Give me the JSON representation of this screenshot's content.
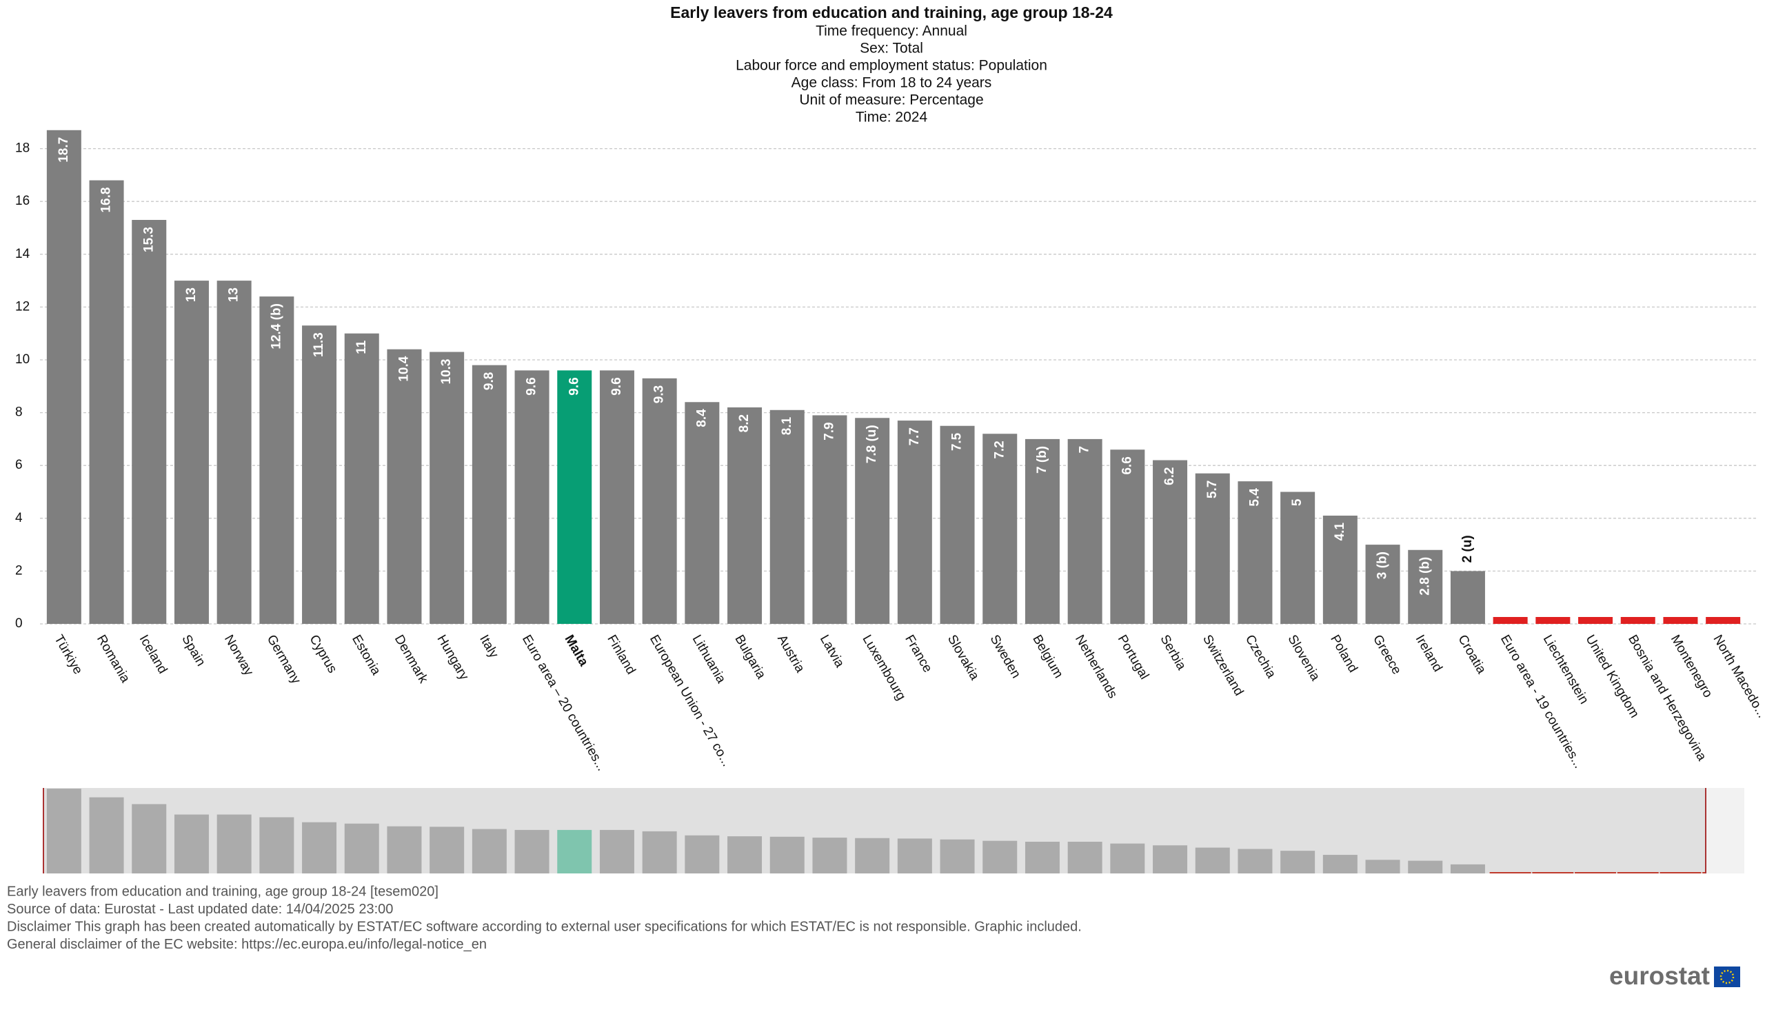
{
  "chart_data": {
    "type": "bar",
    "title": "Early leavers from education and training, age group 18-24",
    "subtitle": [
      "Time frequency:  Annual",
      "Sex:  Total",
      "Labour force and employment status:  Population",
      "Age class:  From 18 to 24 years",
      "Unit of measure:  Percentage",
      "Time:  2024"
    ],
    "categories": [
      "Türkiye",
      "Romania",
      "Iceland",
      "Spain",
      "Norway",
      "Germany",
      "Cyprus",
      "Estonia",
      "Denmark",
      "Hungary",
      "Italy",
      "Euro area – 20 countries...",
      "Malta",
      "Finland",
      "European Union - 27 co...",
      "Lithuania",
      "Bulgaria",
      "Austria",
      "Latvia",
      "Luxembourg",
      "France",
      "Slovakia",
      "Sweden",
      "Belgium",
      "Netherlands",
      "Portugal",
      "Serbia",
      "Switzerland",
      "Czechia",
      "Slovenia",
      "Poland",
      "Greece",
      "Ireland",
      "Croatia",
      "Euro area - 19 countries...",
      "Liechtenstein",
      "United Kingdom",
      "Bosnia and Herzegovina",
      "Montenegro",
      "North Macedo..."
    ],
    "values": [
      18.7,
      16.8,
      15.3,
      13,
      13,
      12.4,
      11.3,
      11,
      10.4,
      10.3,
      9.8,
      9.6,
      9.6,
      9.6,
      9.3,
      8.4,
      8.2,
      8.1,
      7.9,
      7.8,
      7.7,
      7.5,
      7.2,
      7,
      7,
      6.6,
      6.2,
      5.7,
      5.4,
      5,
      4.1,
      3,
      2.8,
      2,
      null,
      null,
      null,
      null,
      null,
      null
    ],
    "value_labels": [
      "18.7",
      "16.8",
      "15.3",
      "13",
      "13",
      "12.4 (b)",
      "11.3",
      "11",
      "10.4",
      "10.3",
      "9.8",
      "9.6",
      "9.6",
      "9.6",
      "9.3",
      "8.4",
      "8.2",
      "8.1",
      "7.9",
      "7.8 (u)",
      "7.7",
      "7.5",
      "7.2",
      "7 (b)",
      "7",
      "6.6",
      "6.2",
      "5.7",
      "5.4",
      "5",
      "4.1",
      "3 (b)",
      "2.8 (b)",
      "2 (u)",
      null,
      null,
      null,
      null,
      null,
      null
    ],
    "color": "#7f7f7f",
    "highlight_index": 12,
    "highlight_color": "#079e74",
    "missing_color": "#e02020",
    "ylim": [
      0,
      20
    ],
    "yticks": [
      0,
      2,
      4,
      6,
      8,
      10,
      12,
      14,
      16,
      18
    ],
    "grid": true
  },
  "footer": [
    "Early leavers from education and training, age group 18-24 [tesem020]",
    "Source of data: Eurostat - Last updated date: 14/04/2025 23:00",
    "Disclaimer This graph has been created automatically by ESTAT/EC software according to external user specifications for which ESTAT/EC is not responsible. Graphic included.",
    "General disclaimer of the EC website: https://ec.europa.eu/info/legal-notice_en"
  ],
  "logo": "eurostat"
}
